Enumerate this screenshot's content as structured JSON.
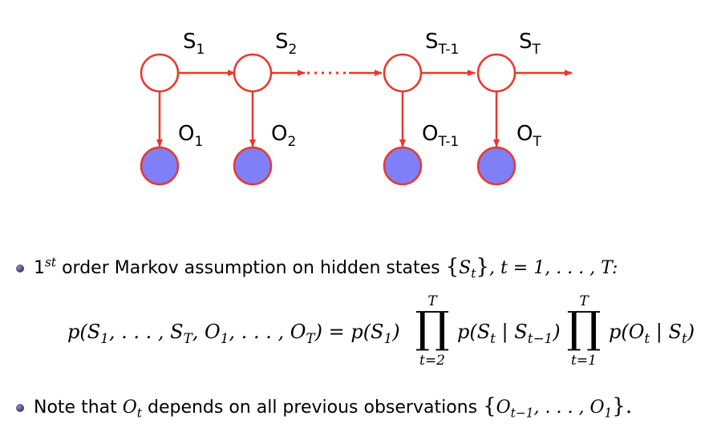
{
  "diagram": {
    "state_labels": [
      {
        "base": "S",
        "sub": "1"
      },
      {
        "base": "S",
        "sub": "2"
      },
      {
        "base": "S",
        "sub": "T-1"
      },
      {
        "base": "S",
        "sub": "T"
      }
    ],
    "observation_labels": [
      {
        "base": "O",
        "sub": "1"
      },
      {
        "base": "O",
        "sub": "2"
      },
      {
        "base": "O",
        "sub": "T-1"
      },
      {
        "base": "O",
        "sub": "T"
      }
    ],
    "colors": {
      "edge": "#e8382e",
      "hidden_fill": "#ffffff",
      "observed_fill": "#7f7ff8"
    }
  },
  "bullets": {
    "first": {
      "order_num": "1",
      "order_sup": "st",
      "text": " order Markov assumption on hidden states ",
      "set_open": "{",
      "set_var": "S",
      "set_sub": "t",
      "set_close": "}",
      "rest": ", t = 1, . . . , T:"
    },
    "equation": {
      "lhs": "p(S",
      "lhs_sub1": "1",
      "lhs_mid": ", . . . , S",
      "lhs_subT": "T",
      "lhs_mid2": ", O",
      "lhs_sub2": "1",
      "lhs_mid3": ", . . . , O",
      "lhs_subT2": "T",
      "lhs_end": ") = p(S",
      "rhs1_sub": "1",
      "rhs1_end": ")",
      "prod1_top": "T",
      "prod1_sym": "∏",
      "prod1_bot": "t=2",
      "term1": "p(S",
      "term1_sub": "t",
      "term1_bar": " | S",
      "term1_sub2": "t−1",
      "term1_end": ")",
      "prod2_top": "T",
      "prod2_sym": "∏",
      "prod2_bot": "t=1",
      "term2": "p(O",
      "term2_sub": "t",
      "term2_bar": " | S",
      "term2_sub2": "t",
      "term2_end": ")"
    },
    "second": {
      "text1": "Note that ",
      "var": "O",
      "var_sub": "t",
      "text2": " depends on all previous observations ",
      "set_open": "{",
      "s1": "O",
      "s1_sub": "t−1",
      "s_mid": ", . . . , O",
      "s2_sub": "1",
      "set_close": "}."
    }
  }
}
